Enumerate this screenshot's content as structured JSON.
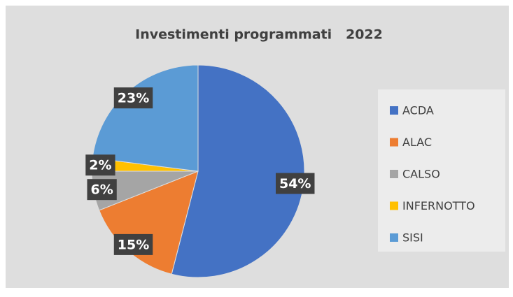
{
  "chart_data": {
    "type": "pie",
    "title": "Investimenti programmati   2022",
    "categories": [
      "ACDA",
      "ALAC",
      "CALSO",
      "INFERNOTTO",
      "SISI"
    ],
    "values": [
      54,
      15,
      6,
      2,
      23
    ],
    "value_labels": [
      "54%",
      "15%",
      "6%",
      "2%",
      "23%"
    ],
    "colors": [
      "#4472c4",
      "#ed7d31",
      "#a5a5a5",
      "#ffc000",
      "#5b9bd5"
    ],
    "legend": "right"
  }
}
